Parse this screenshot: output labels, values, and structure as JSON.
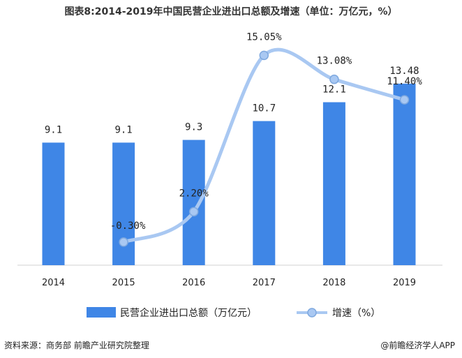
{
  "title": "图表8:2014-2019年中国民营企业进出口总额及增速（单位：万亿元，%）",
  "source": "资料来源：商务部 前瞻产业研究院整理",
  "credit": "@前瞻经济学人APP",
  "colors": {
    "bar": "#3f86e6",
    "line": "#a9c8f2",
    "marker_fill": "#a9c8f2",
    "marker_stroke": "#7fa9df"
  },
  "chart_data": {
    "type": "bar",
    "categories": [
      "2014",
      "2015",
      "2016",
      "2017",
      "2018",
      "2019"
    ],
    "series": [
      {
        "name": "民营企业进出口总额（万亿元）",
        "type": "bar",
        "values": [
          9.1,
          9.1,
          9.3,
          10.7,
          12.1,
          13.48
        ],
        "labels": [
          "9.1",
          "9.1",
          "9.3",
          "10.7",
          "12.1",
          "13.48"
        ]
      },
      {
        "name": "增速（%）",
        "type": "line",
        "smooth": true,
        "x": [
          "2015",
          "2016",
          "2017",
          "2018",
          "2019"
        ],
        "values": [
          -0.3,
          2.2,
          15.05,
          13.08,
          11.4
        ],
        "labels": [
          "-0.30%",
          "2.20%",
          "15.05%",
          "13.08%",
          "11.40%"
        ]
      }
    ],
    "legend": "bottom"
  }
}
